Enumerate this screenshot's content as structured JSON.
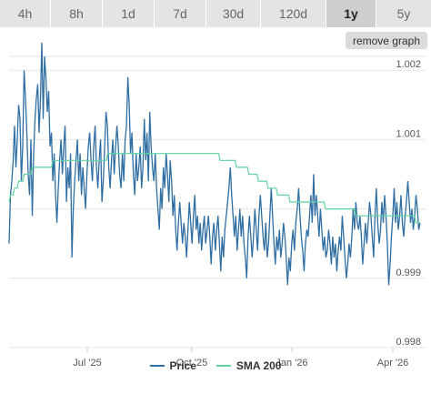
{
  "tabs": [
    {
      "label": "4h",
      "active": false
    },
    {
      "label": "8h",
      "active": false
    },
    {
      "label": "1d",
      "active": false
    },
    {
      "label": "7d",
      "active": false
    },
    {
      "label": "30d",
      "active": false
    },
    {
      "label": "120d",
      "active": false
    },
    {
      "label": "1y",
      "active": true
    },
    {
      "label": "5y",
      "active": false
    }
  ],
  "remove_graph_label": "remove graph",
  "legend": {
    "price_label": "Price",
    "sma_label": "SMA 200"
  },
  "colors": {
    "price": "#2f6ea3",
    "sma": "#5fd3a0",
    "grid": "#e6e6e6",
    "tab_bg": "#e4e4e4",
    "tab_active_bg": "#cfcfcf"
  },
  "chart_data": {
    "type": "line",
    "x_ticks": [
      "Jul '25",
      "Oct '25",
      "Jan '26",
      "Apr '26"
    ],
    "y_ticks": [
      0.998,
      0.999,
      1.0,
      1.001,
      1.002
    ],
    "y_tick_labels": [
      "0.998",
      "0.999",
      "",
      "1.001",
      "1.002"
    ],
    "ylim": [
      0.998,
      1.0022
    ],
    "grid": true,
    "legend_position": "bottom",
    "series": [
      {
        "name": "Price",
        "values": [
          0.9995,
          1.0002,
          1.0004,
          1.0007,
          1.0012,
          1.0006,
          1.001,
          1.0015,
          1.0013,
          1.0004,
          1.0009,
          1.002,
          1.0016,
          1.0011,
          1.0005,
          1.0002,
          1.001,
          0.9999,
          1.0008,
          1.0013,
          1.0016,
          1.0018,
          1.0011,
          1.0016,
          1.0024,
          1.0013,
          1.0022,
          1.0019,
          1.0014,
          1.0017,
          1.0009,
          1.0011,
          1.0004,
          1.0008,
          1.0002,
          0.9998,
          1.0003,
          1.0007,
          1.001,
          1.0005,
          1.0009,
          1.0012,
          1.0001,
          1.0006,
          1.0003,
          1.0008,
          0.9993,
          1.0,
          1.0004,
          1.0007,
          1.001,
          1.0004,
          1.0008,
          1.0002,
          1.0006,
          1.0003,
          1.0,
          1.0005,
          1.0009,
          1.0011,
          1.0007,
          1.0004,
          1.0009,
          1.0012,
          1.0006,
          1.0003,
          1.0007,
          1.001,
          1.0001,
          1.0004,
          1.0009,
          1.0014,
          1.0012,
          1.0006,
          1.0003,
          1.0007,
          1.001,
          1.0005,
          1.0009,
          1.0012,
          1.0009,
          1.0005,
          1.0003,
          1.0008,
          1.0004,
          1.001,
          1.0012,
          1.0019,
          1.0015,
          1.0008,
          1.0011,
          1.0005,
          1.0002,
          1.0008,
          1.0004,
          1.0006,
          1.0009,
          1.0003,
          1.0006,
          1.0013,
          1.0007,
          1.0011,
          1.0004,
          1.0014,
          1.0009,
          1.0006,
          1.0004,
          1.0008,
          1.0003,
          1.0,
          0.9997,
          1.0003,
          1.0,
          1.0006,
          1.0003,
          1.0008,
          1.0005,
          1.0001,
          1.0007,
          1.0004,
          0.9999,
          1.0002,
          0.9997,
          0.9994,
          0.9998,
          1.0001,
          0.9998,
          0.9995,
          0.9998,
          0.9996,
          0.9993,
          0.9997,
          1.0001,
          0.9998,
          0.9995,
          0.9999,
          1.0002,
          0.9997,
          0.9999,
          0.9995,
          0.9998,
          0.9994,
          0.9997,
          0.9999,
          0.9995,
          0.9997,
          0.9999,
          0.9996,
          0.9992,
          0.9996,
          0.9998,
          0.9994,
          0.9997,
          0.9999,
          0.9995,
          0.9991,
          0.9996,
          0.9993,
          0.9997,
          0.9999,
          1.0001,
          1.0003,
          1.0006,
          1.0002,
          0.9999,
          0.9996,
          0.9999,
          0.9994,
          0.9997,
          1.0,
          0.9996,
          0.9999,
          0.9995,
          0.9993,
          0.999,
          0.9996,
          0.9999,
          0.9996,
          0.9993,
          0.9996,
          1.0,
          0.9997,
          0.9994,
          0.9999,
          1.0002,
          0.9999,
          0.9996,
          0.9994,
          0.9998,
          0.9993,
          0.9995,
          0.9999,
          1.0003,
          0.9999,
          0.9995,
          0.9992,
          0.9996,
          0.9994,
          0.9997,
          0.9993,
          0.9995,
          0.9998,
          0.9996,
          0.9993,
          0.9989,
          0.9993,
          0.9991,
          0.9995,
          0.9997,
          0.9994,
          0.9998,
          1.0,
          1.0003,
          0.9999,
          0.9996,
          0.9994,
          0.9991,
          0.9995,
          0.9997,
          0.9996,
          0.9999,
          1.0002,
          0.9998,
          1.0005,
          0.9999,
          1.0002,
          0.9999,
          0.9996,
          1.0,
          0.9997,
          0.9994,
          0.9996,
          0.9993,
          0.9994,
          0.9997,
          0.9995,
          0.9992,
          0.9996,
          0.9993,
          0.9995,
          0.9991,
          0.9994,
          0.9996,
          0.9994,
          0.9999,
          0.9996,
          0.9993,
          0.999,
          0.9992,
          0.9995,
          0.9993,
          0.9996,
          1.0,
          0.9997,
          1.0001,
          0.9998,
          0.9997,
          0.9999,
          0.9996,
          0.9992,
          0.9995,
          0.9998,
          0.9995,
          0.9998,
          1.0001,
          0.9999,
          0.9996,
          0.9993,
          0.9999,
          1.0003,
          0.9998,
          0.9995,
          0.9997,
          1.0001,
          0.9998,
          1.0002,
          0.9999,
          0.9995,
          0.9989,
          0.9992,
          0.9996,
          0.9999,
          1.0003,
          0.9998,
          1.0001,
          0.9997,
          0.9999,
          1.0002,
          0.9998,
          0.9996,
          0.9999,
          1.0001,
          1.0004,
          1.0001,
          0.9998,
          1.0,
          0.9997,
          0.9999,
          1.0002,
          1.0,
          0.9997,
          0.9998
        ]
      },
      {
        "name": "SMA 200",
        "values": [
          1.0001,
          1.0002,
          1.0002,
          1.0002,
          1.0003,
          1.0003,
          1.0003,
          1.0004,
          1.0004,
          1.0004,
          1.0004,
          1.0005,
          1.0005,
          1.0005,
          1.0005,
          1.0005,
          1.0005,
          1.0006,
          1.0006,
          1.0006,
          1.0006,
          1.0006,
          1.0006,
          1.0006,
          1.0006,
          1.0006,
          1.0006,
          1.0006,
          1.0006,
          1.0006,
          1.0006,
          1.0006,
          1.0007,
          1.0007,
          1.0007,
          1.0007,
          1.0007,
          1.0007,
          1.0007,
          1.0007,
          1.0007,
          1.0007,
          1.0007,
          1.0007,
          1.0007,
          1.0007,
          1.0007,
          1.0007,
          1.0007,
          1.0007,
          1.0007,
          1.0007,
          1.0007,
          1.0007,
          1.0007,
          1.0007,
          1.0007,
          1.0007,
          1.0007,
          1.0007,
          1.0007,
          1.0007,
          1.0007,
          1.0007,
          1.0007,
          1.0007,
          1.0007,
          1.0007,
          1.0007,
          1.0007,
          1.0007,
          1.0007,
          1.0008,
          1.0008,
          1.0008,
          1.0008,
          1.0008,
          1.0008,
          1.0008,
          1.0008,
          1.0008,
          1.0008,
          1.0008,
          1.0008,
          1.0008,
          1.0008,
          1.0008,
          1.0008,
          1.0008,
          1.0008,
          1.0008,
          1.0008,
          1.0008,
          1.0008,
          1.0008,
          1.0008,
          1.0008,
          1.0008,
          1.0008,
          1.0008,
          1.0008,
          1.0008,
          1.0008,
          1.0008,
          1.0008,
          1.0008,
          1.0008,
          1.0008,
          1.0008,
          1.0008,
          1.0008,
          1.0008,
          1.0008,
          1.0008,
          1.0008,
          1.0008,
          1.0008,
          1.0008,
          1.0008,
          1.0008,
          1.0008,
          1.0008,
          1.0008,
          1.0008,
          1.0008,
          1.0008,
          1.0008,
          1.0008,
          1.0008,
          1.0008,
          1.0008,
          1.0008,
          1.0008,
          1.0008,
          1.0008,
          1.0008,
          1.0008,
          1.0008,
          1.0008,
          1.0008,
          1.0008,
          1.0008,
          1.0008,
          1.0008,
          1.0008,
          1.0008,
          1.0008,
          1.0008,
          1.0008,
          1.0008,
          1.0008,
          1.0008,
          1.0008,
          1.0008,
          1.0007,
          1.0007,
          1.0007,
          1.0007,
          1.0007,
          1.0007,
          1.0007,
          1.0007,
          1.0007,
          1.0007,
          1.0007,
          1.0007,
          1.0006,
          1.0006,
          1.0006,
          1.0006,
          1.0006,
          1.0006,
          1.0006,
          1.0006,
          1.0006,
          1.0005,
          1.0005,
          1.0005,
          1.0005,
          1.0005,
          1.0005,
          1.0005,
          1.0004,
          1.0004,
          1.0004,
          1.0004,
          1.0004,
          1.0004,
          1.0004,
          1.0003,
          1.0003,
          1.0003,
          1.0003,
          1.0003,
          1.0003,
          1.0003,
          1.0002,
          1.0002,
          1.0002,
          1.0002,
          1.0002,
          1.0002,
          1.0002,
          1.0002,
          1.0002,
          1.0001,
          1.0001,
          1.0001,
          1.0001,
          1.0001,
          1.0001,
          1.0001,
          1.0001,
          1.0001,
          1.0001,
          1.0001,
          1.0001,
          1.0001,
          1.0001,
          1.0001,
          1.0001,
          1.0001,
          1.0001,
          1.0001,
          1.0001,
          1.0001,
          1.0001,
          1.0001,
          1.0001,
          1.0001,
          1.0001,
          1.0,
          1.0,
          1.0,
          1.0,
          1.0,
          1.0,
          1.0,
          1.0,
          1.0,
          1.0,
          1.0,
          1.0,
          1.0,
          1.0,
          1.0,
          1.0,
          1.0,
          1.0,
          1.0,
          1.0,
          1.0,
          1.0,
          0.9999,
          0.9999,
          0.9999,
          0.9999,
          0.9999,
          0.9999,
          0.9999,
          0.9999,
          0.9999,
          0.9999,
          0.9999,
          0.9999,
          0.9999,
          0.9999,
          0.9999,
          0.9999,
          0.9999,
          0.9999,
          0.9999,
          0.9999,
          0.9999,
          0.9999,
          0.9999,
          0.9999,
          0.9999,
          0.9999,
          0.9999,
          0.9999,
          0.9999,
          0.9999,
          0.9999,
          0.9999,
          0.9999,
          0.9999,
          0.9999,
          0.9999,
          0.9999,
          0.9999,
          0.9999,
          0.9999,
          0.9999,
          0.9999,
          0.9999,
          0.9999,
          0.9998,
          0.9998,
          0.9998,
          0.9998
        ]
      }
    ]
  }
}
